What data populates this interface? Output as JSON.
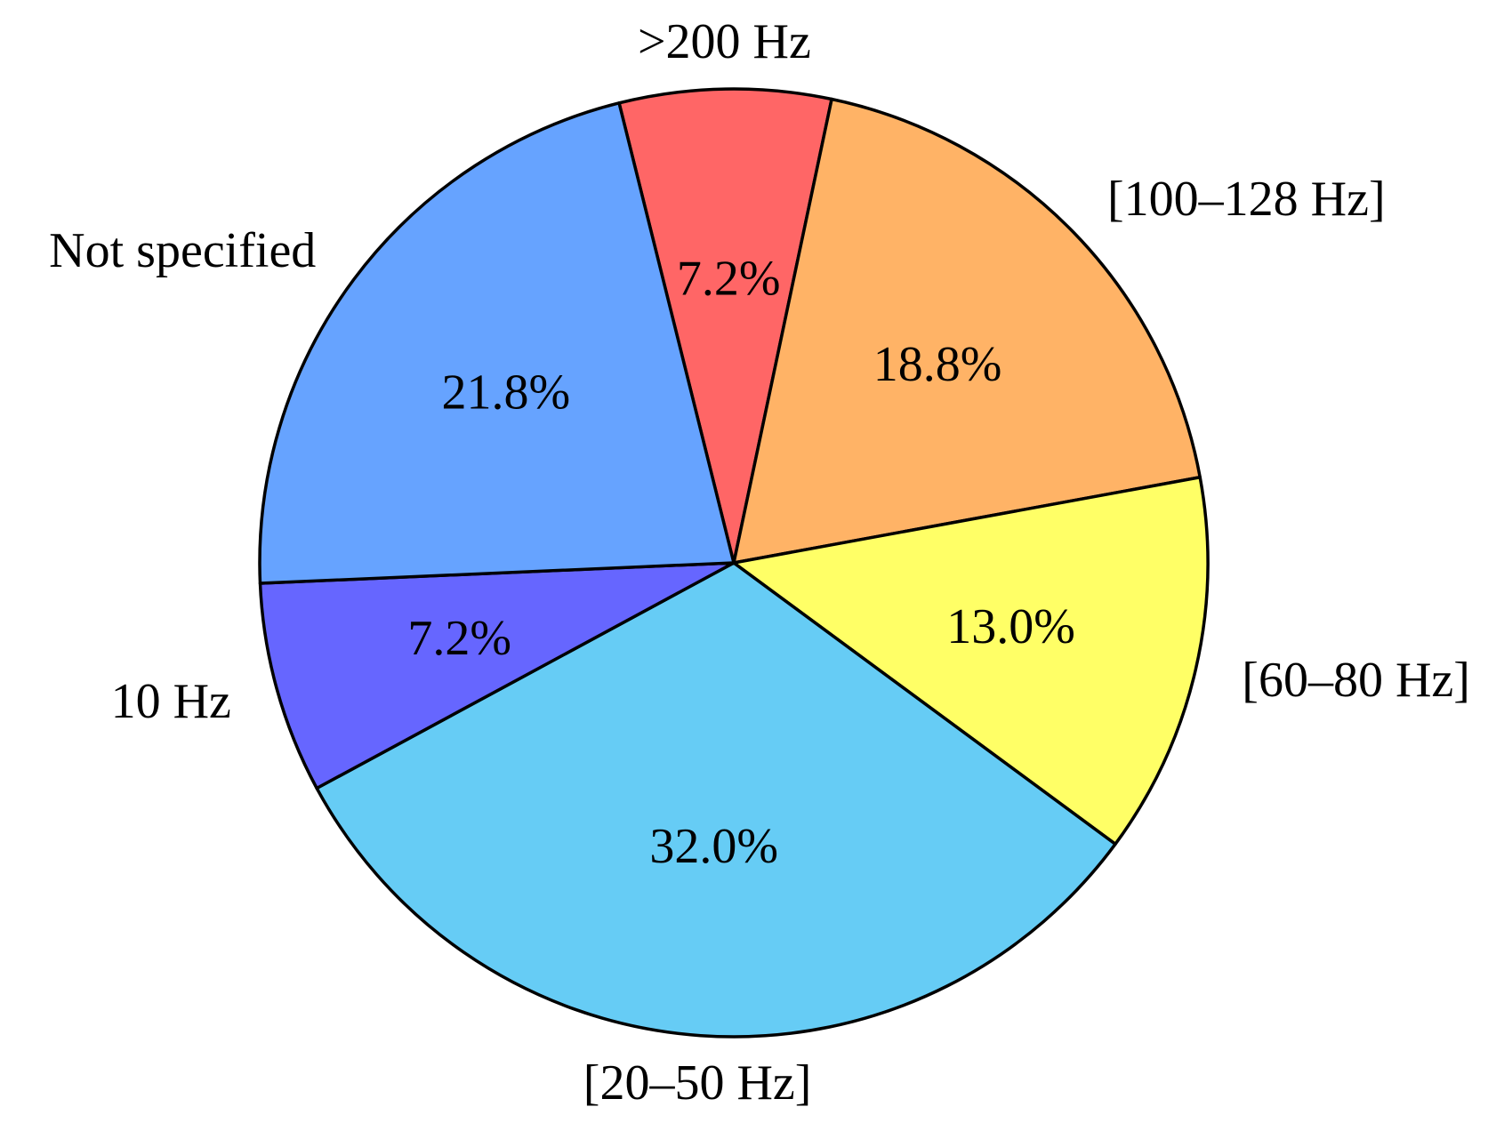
{
  "chart_data": {
    "type": "pie",
    "title": "",
    "slices": [
      {
        "label": ">200 Hz",
        "value": 7.2,
        "value_label": "7.2%",
        "color": "#ff6666"
      },
      {
        "label": "[100–128 Hz]",
        "value": 18.8,
        "value_label": "18.8%",
        "color": "#ffb366"
      },
      {
        "label": "[60–80 Hz]",
        "value": 13.0,
        "value_label": "13.0%",
        "color": "#ffff66"
      },
      {
        "label": "[20–50 Hz]",
        "value": 32.0,
        "value_label": "32.0%",
        "color": "#66ccf5"
      },
      {
        "label": "10 Hz",
        "value": 7.2,
        "value_label": "7.2%",
        "color": "#6666ff"
      },
      {
        "label": "Not specified",
        "value": 21.8,
        "value_label": "21.8%",
        "color": "#66a3ff"
      }
    ],
    "direction": "clockwise",
    "start_angle_deg": 104,
    "outline_color": "#000000",
    "legend": "none"
  }
}
